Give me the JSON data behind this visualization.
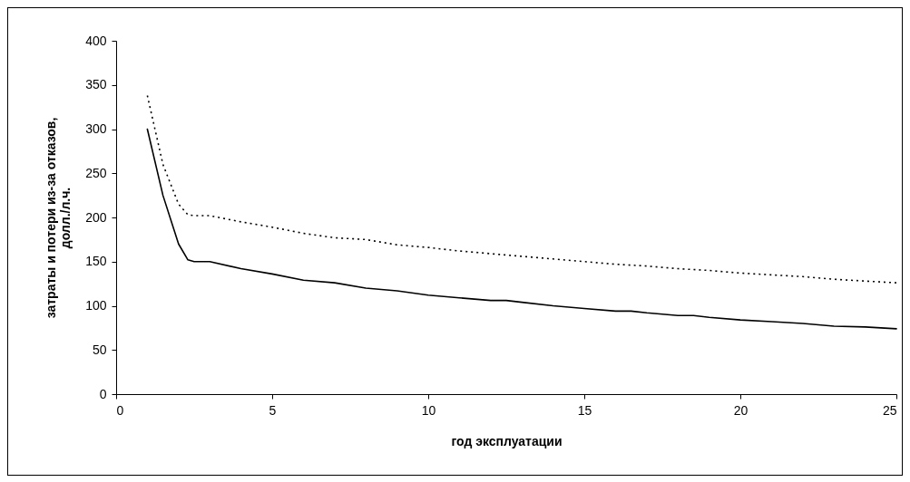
{
  "chart_data": {
    "type": "line",
    "xlabel": "год эксплуатации",
    "ylabel": "затраты и потери из-за отказов, долл./л.ч.",
    "xlim": [
      0,
      25
    ],
    "xticks": [
      0,
      5,
      10,
      15,
      20,
      25
    ],
    "ylim": [
      0,
      400
    ],
    "yticks": [
      0,
      50,
      100,
      150,
      200,
      250,
      300,
      350,
      400
    ],
    "grid": false,
    "marker": "none",
    "series": [
      {
        "color": "#000000",
        "line_style": "solid",
        "x": [
          1,
          1.5,
          2,
          2.3,
          2.5,
          3,
          4,
          5,
          6,
          7,
          8,
          9,
          10,
          11,
          12,
          12.5,
          13,
          14,
          15,
          16,
          16.5,
          17,
          18,
          18.5,
          19,
          20,
          21,
          22,
          23,
          24,
          25
        ],
        "values": [
          300,
          225,
          170,
          152,
          150,
          150,
          142,
          136,
          129,
          126,
          120,
          117,
          112,
          109,
          106,
          106,
          104,
          100,
          97,
          94,
          94,
          92,
          89,
          89,
          87,
          84,
          82,
          80,
          77,
          76,
          74
        ]
      },
      {
        "color": "#000000",
        "line_style": "dotted",
        "x": [
          1,
          1.5,
          2,
          2.3,
          2.5,
          3,
          4,
          5,
          6,
          7,
          8,
          9,
          10,
          11,
          12,
          13,
          14,
          15,
          16,
          17,
          18,
          19,
          20,
          21,
          22,
          23,
          24,
          25
        ],
        "values": [
          338,
          260,
          215,
          203,
          202,
          202,
          195,
          189,
          182,
          177,
          175,
          169,
          166,
          162,
          159,
          156,
          153,
          150,
          147,
          145,
          142,
          140,
          137,
          135,
          133,
          130,
          128,
          126
        ]
      }
    ]
  }
}
